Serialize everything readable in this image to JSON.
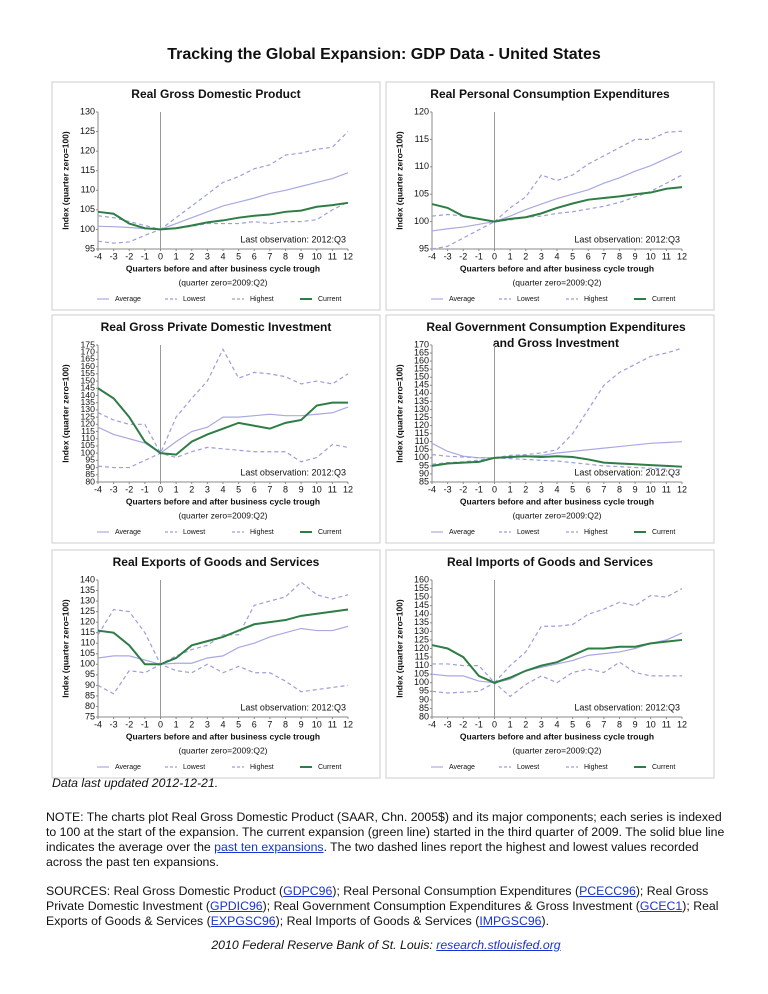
{
  "title": "Tracking the Global Expansion: GDP Data - United States",
  "chart_data": [
    {
      "type": "line",
      "title": "Real Gross Domestic Product",
      "xlabel": "Quarters before and after business cycle trough",
      "xlabel_note": "(quarter zero=2009:Q2)",
      "ylabel": "Index (quarter zero=100)",
      "annotation": "Last observation: 2012:Q3",
      "x": [
        -4,
        -3,
        -2,
        -1,
        0,
        1,
        2,
        3,
        4,
        5,
        6,
        7,
        8,
        9,
        10,
        11,
        12
      ],
      "xlim": [
        -4,
        12
      ],
      "xticks": [
        -4,
        -3,
        -2,
        -1,
        0,
        1,
        2,
        3,
        4,
        5,
        6,
        7,
        8,
        9,
        10,
        11,
        12
      ],
      "ylim": [
        95,
        130
      ],
      "yticks": [
        95,
        100,
        105,
        110,
        115,
        120,
        125,
        130
      ],
      "series": [
        {
          "name": "Average",
          "color": "#a9a9e2",
          "dashed": false,
          "values": [
            100.8,
            100.7,
            100.5,
            100.2,
            100,
            101.5,
            103,
            104.5,
            106,
            107,
            108,
            109.2,
            110,
            111,
            112,
            113,
            114.5
          ]
        },
        {
          "name": "Lowest",
          "color": "#9d9ddc",
          "dashed": true,
          "values": [
            97,
            96.5,
            96.8,
            98.5,
            100,
            100.3,
            100.8,
            101.5,
            101.5,
            101.5,
            102,
            101.5,
            102,
            102,
            102.5,
            105,
            107
          ]
        },
        {
          "name": "Highest",
          "color": "#9d9ddc",
          "dashed": true,
          "values": [
            103.5,
            103,
            102,
            101,
            100,
            103,
            106,
            109,
            112,
            113.5,
            115.5,
            116.5,
            119,
            119.5,
            120.5,
            121,
            125
          ]
        },
        {
          "name": "Current",
          "color": "#2e7d45",
          "dashed": false,
          "values": [
            104.5,
            104,
            101.5,
            100.3,
            100,
            100.3,
            101,
            101.8,
            102.3,
            103,
            103.5,
            103.8,
            104.5,
            104.8,
            105.8,
            106.2,
            106.8
          ]
        }
      ]
    },
    {
      "type": "line",
      "title": "Real Personal Consumption Expenditures",
      "xlabel": "Quarters before and after business cycle trough",
      "xlabel_note": "(quarter zero=2009:Q2)",
      "ylabel": "Index (quarter zero=100)",
      "annotation": "Last observation: 2012:Q3",
      "x": [
        -4,
        -3,
        -2,
        -1,
        0,
        1,
        2,
        3,
        4,
        5,
        6,
        7,
        8,
        9,
        10,
        11,
        12
      ],
      "xlim": [
        -4,
        12
      ],
      "xticks": [
        -4,
        -3,
        -2,
        -1,
        0,
        1,
        2,
        3,
        4,
        5,
        6,
        7,
        8,
        9,
        10,
        11,
        12
      ],
      "ylim": [
        95,
        120
      ],
      "yticks": [
        95,
        100,
        105,
        110,
        115,
        120
      ],
      "series": [
        {
          "name": "Average",
          "color": "#a9a9e2",
          "dashed": false,
          "values": [
            98.3,
            98.7,
            99,
            99.5,
            100,
            101,
            102.2,
            103.2,
            104.2,
            105,
            105.8,
            107,
            108,
            109.2,
            110.2,
            111.5,
            112.8
          ]
        },
        {
          "name": "Lowest",
          "color": "#9d9ddc",
          "dashed": true,
          "values": [
            95,
            95.5,
            97,
            98.5,
            100,
            100.3,
            100.8,
            101,
            101.5,
            101.8,
            102.3,
            102.8,
            103.5,
            104.5,
            105.5,
            107,
            108.5
          ]
        },
        {
          "name": "Highest",
          "color": "#9d9ddc",
          "dashed": true,
          "values": [
            101,
            101.3,
            101,
            100.5,
            100,
            102.5,
            104.5,
            108.5,
            107.5,
            108.5,
            110.5,
            112,
            113.5,
            115,
            115,
            116.3,
            116.5
          ]
        },
        {
          "name": "Current",
          "color": "#2e7d45",
          "dashed": false,
          "values": [
            103.2,
            102.5,
            101,
            100.5,
            100,
            100.5,
            100.8,
            101.5,
            102.5,
            103.3,
            104,
            104.3,
            104.6,
            105,
            105.3,
            106,
            106.3
          ]
        }
      ]
    },
    {
      "type": "line",
      "title": "Real Gross Private Domestic Investment",
      "xlabel": "Quarters before and after business cycle trough",
      "xlabel_note": "(quarter zero=2009:Q2)",
      "ylabel": "Index (quarter zero=100)",
      "annotation": "Last observation: 2012:Q3",
      "x": [
        -4,
        -3,
        -2,
        -1,
        0,
        1,
        2,
        3,
        4,
        5,
        6,
        7,
        8,
        9,
        10,
        11,
        12
      ],
      "xlim": [
        -4,
        12
      ],
      "xticks": [
        -4,
        -3,
        -2,
        -1,
        0,
        1,
        2,
        3,
        4,
        5,
        6,
        7,
        8,
        9,
        10,
        11,
        12
      ],
      "ylim": [
        80,
        175
      ],
      "yticks": [
        80,
        85,
        90,
        95,
        100,
        105,
        110,
        115,
        120,
        125,
        130,
        135,
        140,
        145,
        150,
        155,
        160,
        165,
        170,
        175
      ],
      "series": [
        {
          "name": "Average",
          "color": "#a9a9e2",
          "dashed": false,
          "values": [
            118,
            113,
            110,
            107,
            100,
            108,
            115,
            118,
            125,
            125,
            126,
            127,
            126,
            126,
            127,
            128,
            132
          ]
        },
        {
          "name": "Lowest",
          "color": "#9d9ddc",
          "dashed": true,
          "values": [
            91,
            90,
            90,
            95,
            100,
            97,
            101,
            104,
            103,
            102,
            101,
            101,
            101,
            94,
            97,
            106,
            104
          ]
        },
        {
          "name": "Highest",
          "color": "#9d9ddc",
          "dashed": true,
          "values": [
            128,
            123,
            120,
            120,
            100,
            125,
            138,
            150,
            172,
            152,
            156,
            155,
            153,
            148,
            150,
            148,
            155
          ]
        },
        {
          "name": "Current",
          "color": "#2e7d45",
          "dashed": false,
          "values": [
            145,
            138,
            125,
            108,
            100,
            99,
            108,
            113,
            117,
            121,
            119,
            117,
            121,
            123,
            133,
            135,
            135
          ]
        }
      ]
    },
    {
      "type": "line",
      "title": [
        "Real Government Consumption Expenditures",
        "and Gross Investment"
      ],
      "xlabel": "Quarters before and after business cycle trough",
      "xlabel_note": "(quarter zero=2009:Q2)",
      "ylabel": "Index (quarter zero=100)",
      "annotation": "Last observation: 2012:Q3",
      "x": [
        -4,
        -3,
        -2,
        -1,
        0,
        1,
        2,
        3,
        4,
        5,
        6,
        7,
        8,
        9,
        10,
        11,
        12
      ],
      "xlim": [
        -4,
        12
      ],
      "xticks": [
        -4,
        -3,
        -2,
        -1,
        0,
        1,
        2,
        3,
        4,
        5,
        6,
        7,
        8,
        9,
        10,
        11,
        12
      ],
      "ylim": [
        85,
        170
      ],
      "yticks": [
        85,
        90,
        95,
        100,
        105,
        110,
        115,
        120,
        125,
        130,
        135,
        140,
        145,
        150,
        155,
        160,
        165,
        170
      ],
      "series": [
        {
          "name": "Average",
          "color": "#a9a9e2",
          "dashed": false,
          "values": [
            109,
            104,
            101,
            100,
            100,
            100.5,
            101,
            101.5,
            103,
            104,
            105,
            106,
            107,
            108,
            109,
            109.5,
            110
          ]
        },
        {
          "name": "Lowest",
          "color": "#9d9ddc",
          "dashed": true,
          "values": [
            96,
            97,
            97.5,
            98.5,
            100,
            99.5,
            99,
            98.5,
            98,
            97,
            96,
            95,
            94.5,
            94,
            93.5,
            93,
            92.5
          ]
        },
        {
          "name": "Highest",
          "color": "#9d9ddc",
          "dashed": true,
          "values": [
            102,
            101,
            100.5,
            100,
            100,
            101.5,
            102,
            103,
            105,
            115,
            130,
            145,
            153,
            158,
            163,
            165,
            168
          ]
        },
        {
          "name": "Current",
          "color": "#2e7d45",
          "dashed": false,
          "values": [
            95,
            96.5,
            97,
            97.5,
            100,
            100.5,
            101,
            100.5,
            101,
            100.5,
            99,
            97,
            96.5,
            96,
            95.5,
            95,
            94.5
          ]
        }
      ]
    },
    {
      "type": "line",
      "title": "Real Exports of Goods and Services",
      "xlabel": "Quarters before and after business cycle trough",
      "xlabel_note": "(quarter zero=2009:Q2)",
      "ylabel": "Index (quarter zero=100)",
      "annotation": "Last observation: 2012:Q3",
      "x": [
        -4,
        -3,
        -2,
        -1,
        0,
        1,
        2,
        3,
        4,
        5,
        6,
        7,
        8,
        9,
        10,
        11,
        12
      ],
      "xlim": [
        -4,
        12
      ],
      "xticks": [
        -4,
        -3,
        -2,
        -1,
        0,
        1,
        2,
        3,
        4,
        5,
        6,
        7,
        8,
        9,
        10,
        11,
        12
      ],
      "ylim": [
        75,
        140
      ],
      "yticks": [
        75,
        80,
        85,
        90,
        95,
        100,
        105,
        110,
        115,
        120,
        125,
        130,
        135,
        140
      ],
      "series": [
        {
          "name": "Average",
          "color": "#a9a9e2",
          "dashed": false,
          "values": [
            103,
            104,
            104,
            102,
            100,
            100.5,
            100.5,
            103,
            104,
            108,
            110,
            113,
            115,
            117,
            116,
            116,
            118
          ]
        },
        {
          "name": "Lowest",
          "color": "#9d9ddc",
          "dashed": true,
          "values": [
            90,
            86,
            97,
            96,
            100,
            97,
            96,
            100,
            96,
            99,
            96,
            96,
            92,
            87,
            88,
            89,
            90
          ]
        },
        {
          "name": "Highest",
          "color": "#9d9ddc",
          "dashed": true,
          "values": [
            114,
            126,
            125,
            115,
            100,
            104,
            107,
            109,
            114,
            114,
            128,
            130,
            132,
            139,
            133,
            131,
            133
          ]
        },
        {
          "name": "Current",
          "color": "#2e7d45",
          "dashed": false,
          "values": [
            116,
            115,
            109,
            100,
            100,
            103,
            109,
            111,
            113,
            116,
            119,
            120,
            121,
            123,
            124,
            125,
            126
          ]
        }
      ]
    },
    {
      "type": "line",
      "title": "Real Imports of Goods and Services",
      "xlabel": "Quarters before and after business cycle trough",
      "xlabel_note": "(quarter zero=2009:Q2)",
      "ylabel": "Index (quarter zero=100)",
      "annotation": "Last observation: 2012:Q3",
      "x": [
        -4,
        -3,
        -2,
        -1,
        0,
        1,
        2,
        3,
        4,
        5,
        6,
        7,
        8,
        9,
        10,
        11,
        12
      ],
      "xlim": [
        -4,
        12
      ],
      "xticks": [
        -4,
        -3,
        -2,
        -1,
        0,
        1,
        2,
        3,
        4,
        5,
        6,
        7,
        8,
        9,
        10,
        11,
        12
      ],
      "ylim": [
        80,
        160
      ],
      "yticks": [
        80,
        85,
        90,
        95,
        100,
        105,
        110,
        115,
        120,
        125,
        130,
        135,
        140,
        145,
        150,
        155,
        160
      ],
      "series": [
        {
          "name": "Average",
          "color": "#a9a9e2",
          "dashed": false,
          "values": [
            105,
            104,
            104,
            101,
            100,
            102,
            107,
            109,
            111,
            113,
            116,
            117,
            118,
            120,
            123,
            125,
            129
          ]
        },
        {
          "name": "Lowest",
          "color": "#9d9ddc",
          "dashed": true,
          "values": [
            95,
            94,
            94.5,
            95,
            100,
            92,
            99,
            104,
            100,
            106,
            108,
            106,
            112,
            106,
            104,
            104,
            104
          ]
        },
        {
          "name": "Highest",
          "color": "#9d9ddc",
          "dashed": true,
          "values": [
            111,
            111,
            110,
            110,
            100,
            110,
            118,
            133,
            133,
            134,
            140,
            143,
            147,
            145,
            151,
            150,
            155
          ]
        },
        {
          "name": "Current",
          "color": "#2e7d45",
          "dashed": false,
          "values": [
            122,
            120,
            115,
            104,
            100,
            103,
            107,
            110,
            112,
            116,
            120,
            120,
            121,
            121,
            123,
            124,
            125
          ]
        }
      ]
    }
  ],
  "updated": "Data last updated 2012-12-21.",
  "note": [
    "NOTE: The charts plot Real Gross Domestic Product (SAAR, Chn. 2005$) and its major components; each series is indexed to 100 at the start of the expansion. The current expansion (green line) started in the third quarter of 2009. The solid blue line indicates the average over the ",
    "past ten expansions",
    ". The two dashed lines report the highest and lowest values recorded across the past ten expansions."
  ],
  "sources": [
    "SOURCES: Real Gross Domestic Product (",
    "GDPC96",
    "); Real Personal Consumption Expenditures (",
    "PCECC96",
    "); Real Gross Private Domestic Investment (",
    "GPDIC96",
    "); Real Government Consumption Expenditures & Gross Investment (",
    "GCEC1",
    "); Real Exports of Goods & Services (",
    "EXPGSC96",
    "); Real Imports of Goods & Services (",
    "IMPGSC96",
    ")."
  ],
  "footer": [
    "2010 Federal Reserve Bank of St. Louis: ",
    "research.stlouisfed.org"
  ]
}
